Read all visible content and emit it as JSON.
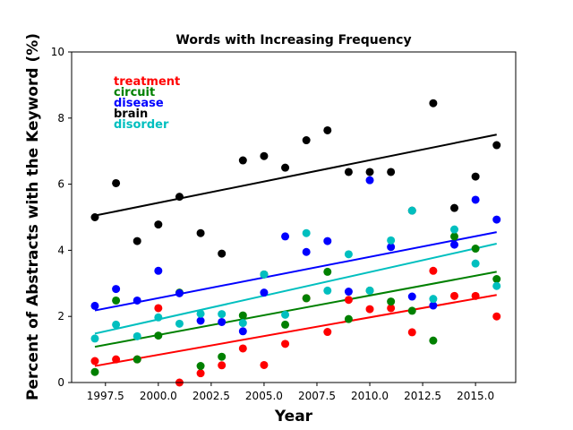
{
  "chart_data": {
    "type": "scatter",
    "title": "Words with Increasing Frequency",
    "xlabel": "Year",
    "ylabel": "Percent of Abstracts with the Keyword (%)",
    "xlim": [
      1995.9,
      2016.9
    ],
    "ylim": [
      0,
      10
    ],
    "xticks": [
      1997.5,
      2000.0,
      2002.5,
      2005.0,
      2007.5,
      2010.0,
      2012.5,
      2015.0
    ],
    "xtick_labels": [
      "1997.5",
      "2000.0",
      "2002.5",
      "2005.0",
      "2007.5",
      "2010.0",
      "2012.5",
      "2015.0"
    ],
    "yticks": [
      0,
      2,
      4,
      6,
      8,
      10
    ],
    "ytick_labels": [
      "0",
      "2",
      "4",
      "6",
      "8",
      "10"
    ],
    "grid": false,
    "legend_position": "top-left",
    "x": [
      1997,
      1998,
      1999,
      2000,
      2001,
      2002,
      2003,
      2004,
      2005,
      2006,
      2007,
      2008,
      2009,
      2010,
      2011,
      2012,
      2013,
      2014,
      2015,
      2016
    ],
    "series": [
      {
        "name": "treatment",
        "color": "#ff0000",
        "values": [
          0.65,
          0.7,
          0.7,
          2.25,
          0.0,
          0.28,
          0.52,
          1.03,
          0.53,
          1.17,
          2.55,
          1.53,
          2.5,
          2.22,
          2.25,
          1.52,
          3.38,
          2.62,
          2.62,
          2.0
        ],
        "trend": [
          0.5,
          2.65
        ]
      },
      {
        "name": "circuit",
        "color": "#008000",
        "values": [
          0.32,
          2.48,
          0.7,
          1.42,
          2.72,
          0.5,
          0.78,
          2.03,
          3.27,
          1.75,
          2.55,
          3.35,
          1.92,
          2.78,
          2.45,
          2.17,
          1.27,
          4.42,
          4.05,
          3.13
        ],
        "trend": [
          1.08,
          3.35
        ]
      },
      {
        "name": "disease",
        "color": "#0000ff",
        "values": [
          2.32,
          2.83,
          2.48,
          3.38,
          2.7,
          1.87,
          1.83,
          1.55,
          2.72,
          4.42,
          3.95,
          4.28,
          2.75,
          6.12,
          4.1,
          2.6,
          2.33,
          4.17,
          5.53,
          4.93
        ],
        "trend": [
          2.18,
          4.55
        ]
      },
      {
        "name": "brain",
        "color": "#000000",
        "values": [
          5.0,
          6.03,
          4.28,
          4.78,
          5.62,
          4.52,
          3.9,
          6.72,
          6.85,
          6.5,
          7.33,
          7.63,
          6.37,
          6.37,
          6.37,
          5.2,
          8.45,
          5.28,
          6.23,
          7.18
        ],
        "trend": [
          5.05,
          7.5
        ]
      },
      {
        "name": "disorder",
        "color": "#00bfbf",
        "values": [
          1.33,
          1.75,
          1.4,
          1.97,
          1.78,
          2.08,
          2.07,
          1.8,
          3.27,
          2.05,
          4.52,
          2.78,
          3.88,
          2.78,
          4.3,
          5.2,
          2.53,
          4.63,
          3.6,
          2.92
        ],
        "trend": [
          1.48,
          4.2
        ]
      }
    ]
  }
}
